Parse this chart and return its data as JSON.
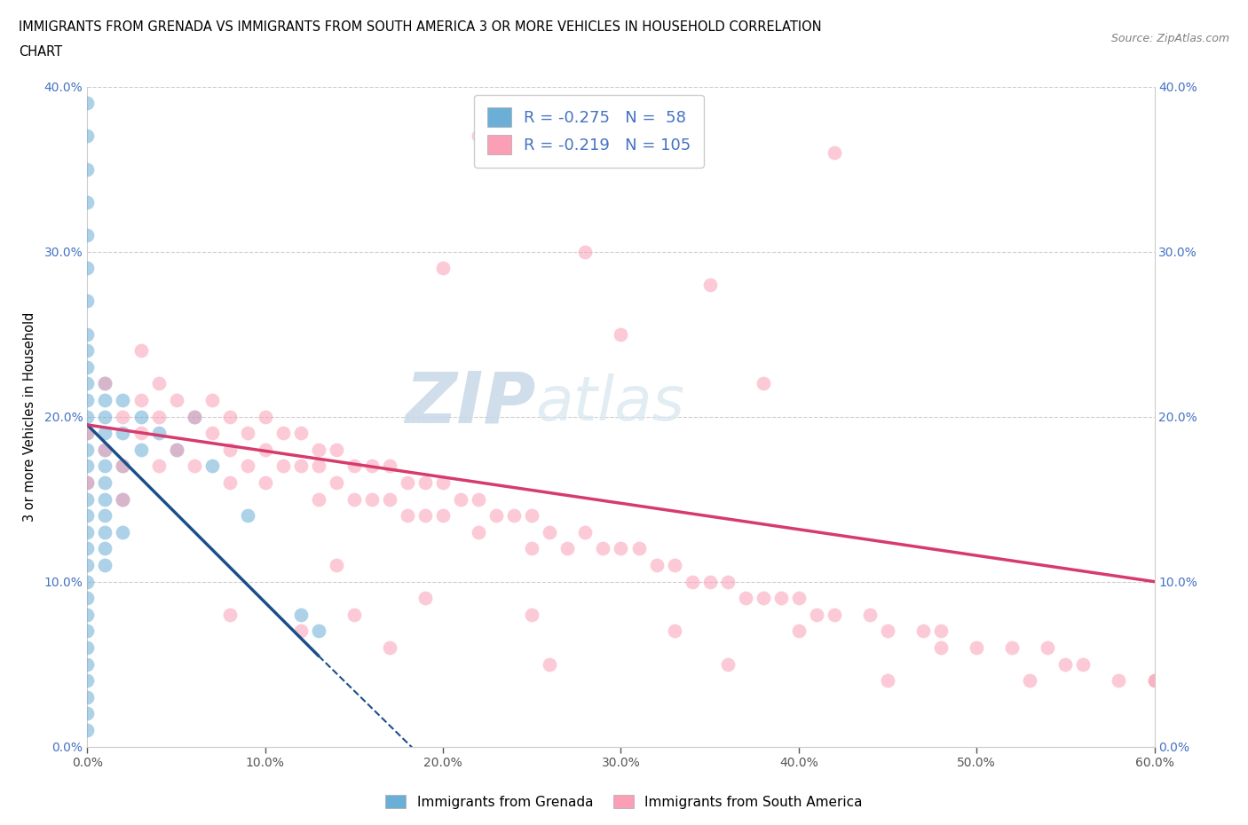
{
  "title_line1": "IMMIGRANTS FROM GRENADA VS IMMIGRANTS FROM SOUTH AMERICA 3 OR MORE VEHICLES IN HOUSEHOLD CORRELATION",
  "title_line2": "CHART",
  "source": "Source: ZipAtlas.com",
  "ylabel": "3 or more Vehicles in Household",
  "legend_label1": "Immigrants from Grenada",
  "legend_label2": "Immigrants from South America",
  "R1": -0.275,
  "N1": 58,
  "R2": -0.219,
  "N2": 105,
  "color1": "#6baed6",
  "color2": "#fa9fb5",
  "trendline1_color": "#1a4f8a",
  "trendline2_color": "#d63b6e",
  "xlim": [
    0.0,
    0.6
  ],
  "ylim": [
    0.0,
    0.4
  ],
  "xticks": [
    0.0,
    0.1,
    0.2,
    0.3,
    0.4,
    0.5,
    0.6
  ],
  "yticks": [
    0.0,
    0.1,
    0.2,
    0.3,
    0.4
  ],
  "xticklabels": [
    "0.0%",
    "10.0%",
    "20.0%",
    "30.0%",
    "40.0%",
    "50.0%",
    "60.0%"
  ],
  "yticklabels": [
    "0.0%",
    "10.0%",
    "20.0%",
    "30.0%",
    "40.0%"
  ],
  "right_yticklabels": [
    "40.0%",
    "30.0%",
    "20.0%",
    "10.0%",
    "0.0%"
  ],
  "watermark_zip": "ZIP",
  "watermark_atlas": "atlas",
  "blue_x": [
    0.0,
    0.0,
    0.0,
    0.0,
    0.0,
    0.0,
    0.0,
    0.0,
    0.0,
    0.0,
    0.0,
    0.0,
    0.0,
    0.0,
    0.0,
    0.0,
    0.0,
    0.0,
    0.0,
    0.0,
    0.0,
    0.0,
    0.0,
    0.0,
    0.0,
    0.0,
    0.0,
    0.0,
    0.0,
    0.0,
    0.0,
    0.0,
    0.01,
    0.01,
    0.01,
    0.01,
    0.01,
    0.01,
    0.01,
    0.01,
    0.01,
    0.01,
    0.01,
    0.01,
    0.02,
    0.02,
    0.02,
    0.02,
    0.02,
    0.03,
    0.03,
    0.04,
    0.05,
    0.06,
    0.07,
    0.09,
    0.12,
    0.13
  ],
  "blue_y": [
    0.39,
    0.37,
    0.35,
    0.33,
    0.31,
    0.29,
    0.27,
    0.25,
    0.24,
    0.23,
    0.22,
    0.21,
    0.2,
    0.19,
    0.18,
    0.17,
    0.16,
    0.15,
    0.14,
    0.13,
    0.12,
    0.11,
    0.1,
    0.09,
    0.08,
    0.07,
    0.06,
    0.05,
    0.04,
    0.03,
    0.02,
    0.01,
    0.22,
    0.21,
    0.2,
    0.19,
    0.18,
    0.17,
    0.16,
    0.15,
    0.14,
    0.13,
    0.12,
    0.11,
    0.21,
    0.19,
    0.17,
    0.15,
    0.13,
    0.2,
    0.18,
    0.19,
    0.18,
    0.2,
    0.17,
    0.14,
    0.08,
    0.07
  ],
  "pink_x": [
    0.0,
    0.0,
    0.01,
    0.01,
    0.02,
    0.02,
    0.02,
    0.03,
    0.03,
    0.03,
    0.04,
    0.04,
    0.04,
    0.05,
    0.05,
    0.06,
    0.06,
    0.07,
    0.07,
    0.08,
    0.08,
    0.08,
    0.09,
    0.09,
    0.1,
    0.1,
    0.1,
    0.11,
    0.11,
    0.12,
    0.12,
    0.13,
    0.13,
    0.13,
    0.14,
    0.14,
    0.15,
    0.15,
    0.16,
    0.16,
    0.17,
    0.17,
    0.18,
    0.18,
    0.19,
    0.19,
    0.2,
    0.2,
    0.21,
    0.22,
    0.22,
    0.23,
    0.24,
    0.25,
    0.25,
    0.26,
    0.27,
    0.28,
    0.29,
    0.3,
    0.31,
    0.32,
    0.33,
    0.34,
    0.35,
    0.36,
    0.37,
    0.38,
    0.39,
    0.4,
    0.41,
    0.42,
    0.44,
    0.45,
    0.47,
    0.48,
    0.5,
    0.52,
    0.54,
    0.56,
    0.58,
    0.6,
    0.22,
    0.28,
    0.35,
    0.42,
    0.2,
    0.3,
    0.38,
    0.14,
    0.19,
    0.25,
    0.33,
    0.4,
    0.48,
    0.55,
    0.6,
    0.08,
    0.12,
    0.17,
    0.26,
    0.36,
    0.45,
    0.53,
    0.15
  ],
  "pink_y": [
    0.19,
    0.16,
    0.22,
    0.18,
    0.2,
    0.17,
    0.15,
    0.24,
    0.21,
    0.19,
    0.22,
    0.2,
    0.17,
    0.21,
    0.18,
    0.2,
    0.17,
    0.21,
    0.19,
    0.2,
    0.18,
    0.16,
    0.19,
    0.17,
    0.2,
    0.18,
    0.16,
    0.19,
    0.17,
    0.19,
    0.17,
    0.18,
    0.17,
    0.15,
    0.18,
    0.16,
    0.17,
    0.15,
    0.17,
    0.15,
    0.17,
    0.15,
    0.16,
    0.14,
    0.16,
    0.14,
    0.16,
    0.14,
    0.15,
    0.15,
    0.13,
    0.14,
    0.14,
    0.14,
    0.12,
    0.13,
    0.12,
    0.13,
    0.12,
    0.12,
    0.12,
    0.11,
    0.11,
    0.1,
    0.1,
    0.1,
    0.09,
    0.09,
    0.09,
    0.09,
    0.08,
    0.08,
    0.08,
    0.07,
    0.07,
    0.07,
    0.06,
    0.06,
    0.06,
    0.05,
    0.04,
    0.04,
    0.37,
    0.3,
    0.28,
    0.36,
    0.29,
    0.25,
    0.22,
    0.11,
    0.09,
    0.08,
    0.07,
    0.07,
    0.06,
    0.05,
    0.04,
    0.08,
    0.07,
    0.06,
    0.05,
    0.05,
    0.04,
    0.04,
    0.08
  ]
}
